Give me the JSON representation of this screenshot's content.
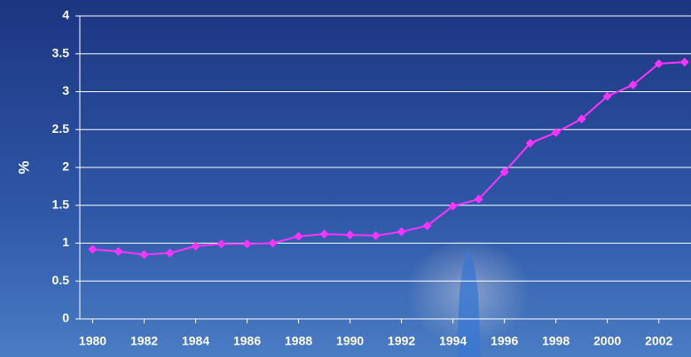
{
  "chart_data": {
    "type": "line",
    "y_label": "%",
    "x": [
      1980,
      1981,
      1982,
      1983,
      1984,
      1985,
      1986,
      1987,
      1988,
      1989,
      1990,
      1991,
      1992,
      1993,
      1994,
      1995,
      1996,
      1997,
      1998,
      1999,
      2000,
      2001,
      2002,
      2003
    ],
    "values": [
      0.92,
      0.89,
      0.85,
      0.87,
      0.96,
      0.99,
      0.99,
      1.0,
      1.09,
      1.12,
      1.11,
      1.1,
      1.15,
      1.23,
      1.49,
      1.58,
      1.94,
      2.32,
      2.46,
      2.64,
      2.94,
      3.09,
      3.37,
      3.39
    ],
    "color": "#ff33ff",
    "xlim": [
      1979.5,
      2003.25
    ],
    "xticks": [
      1980,
      1982,
      1984,
      1986,
      1988,
      1990,
      1992,
      1994,
      1996,
      1998,
      2000,
      2002
    ],
    "ylim": [
      0,
      4
    ],
    "yticks": [
      0,
      0.5,
      1,
      1.5,
      2,
      2.5,
      3,
      3.5,
      4
    ],
    "grid": true
  }
}
